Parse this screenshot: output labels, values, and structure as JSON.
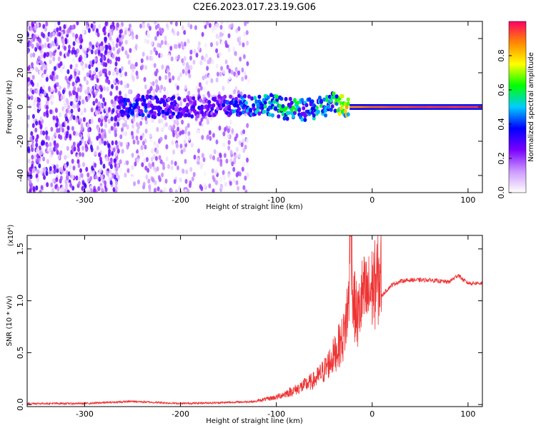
{
  "title": "C2E6.2023.017.23.19.G06",
  "chart_data": [
    {
      "type": "heatmap",
      "xlabel": "Height of straight line (km)",
      "ylabel": "Frequency (Hz)",
      "xlim": [
        -360,
        115
      ],
      "ylim": [
        -50,
        50
      ],
      "xticks": [
        -300,
        -200,
        -100,
        0,
        100
      ],
      "yticks": [
        -40,
        -20,
        0,
        20,
        40
      ],
      "colorbar": {
        "label": "Normalized spectral amplitude",
        "range": [
          0.0,
          1.0
        ],
        "ticks": [
          "0.0",
          "0.2",
          "0.4",
          "0.6",
          "0.8"
        ],
        "colors": [
          "#ffffff",
          "#cc99ff",
          "#7a00ff",
          "#0000ff",
          "#00ccff",
          "#00ff00",
          "#ffff00",
          "#ff8800",
          "#ff0066"
        ]
      },
      "signal_track": [
        {
          "x": -265,
          "y": 0,
          "amp": 0.3
        },
        {
          "x": -250,
          "y": 1,
          "amp": 0.4
        },
        {
          "x": -230,
          "y": 0,
          "amp": 0.35
        },
        {
          "x": -200,
          "y": 0,
          "amp": 0.3
        },
        {
          "x": -170,
          "y": 0,
          "amp": 0.3
        },
        {
          "x": -130,
          "y": 1,
          "amp": 0.45
        },
        {
          "x": -110,
          "y": 2,
          "amp": 0.5
        },
        {
          "x": -90,
          "y": -1,
          "amp": 0.55
        },
        {
          "x": -70,
          "y": -2,
          "amp": 0.5
        },
        {
          "x": -50,
          "y": 0,
          "amp": 0.5
        },
        {
          "x": -40,
          "y": 3,
          "amp": 0.55
        },
        {
          "x": -25,
          "y": 0,
          "amp": 0.85
        },
        {
          "x": 0,
          "y": 0,
          "amp": 0.9
        },
        {
          "x": 50,
          "y": 0,
          "amp": 0.95
        },
        {
          "x": 115,
          "y": 0,
          "amp": 0.95
        }
      ]
    },
    {
      "type": "line",
      "xlabel": "Height of straight line (km)",
      "ylabel": "SNR (10 * v/v)",
      "y_multiplier": "(x10⁴)",
      "xlim": [
        -360,
        115
      ],
      "ylim": [
        -0.02,
        1.63
      ],
      "xticks": [
        -300,
        -200,
        -100,
        0,
        100
      ],
      "yticks": [
        "0.0",
        "0.5",
        "1.0",
        "1.5"
      ],
      "series": [
        {
          "color": "#ee3333",
          "x": [
            -360,
            -300,
            -250,
            -200,
            -150,
            -120,
            -100,
            -80,
            -60,
            -50,
            -40,
            -30,
            -25,
            -22,
            -20,
            -15,
            -10,
            -5,
            0,
            10,
            20,
            30,
            40,
            60,
            80,
            90,
            95,
            100,
            115
          ],
          "y": [
            0.01,
            0.01,
            0.03,
            0.01,
            0.02,
            0.03,
            0.06,
            0.12,
            0.2,
            0.28,
            0.4,
            0.55,
            0.8,
            1.6,
            0.85,
            0.7,
            0.9,
            0.88,
            0.95,
            1.05,
            1.15,
            1.19,
            1.2,
            1.2,
            1.18,
            1.25,
            1.2,
            1.17,
            1.17
          ]
        }
      ]
    }
  ]
}
